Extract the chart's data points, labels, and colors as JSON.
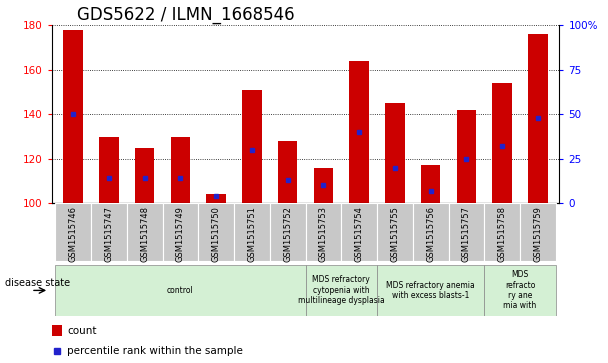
{
  "title": "GDS5622 / ILMN_1668546",
  "samples": [
    "GSM1515746",
    "GSM1515747",
    "GSM1515748",
    "GSM1515749",
    "GSM1515750",
    "GSM1515751",
    "GSM1515752",
    "GSM1515753",
    "GSM1515754",
    "GSM1515755",
    "GSM1515756",
    "GSM1515757",
    "GSM1515758",
    "GSM1515759"
  ],
  "counts": [
    178,
    130,
    125,
    130,
    104,
    151,
    128,
    116,
    164,
    145,
    117,
    142,
    154,
    176
  ],
  "percentile_ranks": [
    50,
    14,
    14,
    14,
    4,
    30,
    13,
    10,
    40,
    20,
    7,
    25,
    32,
    48
  ],
  "ymin": 100,
  "ymax": 180,
  "yticks_left": [
    100,
    120,
    140,
    160,
    180
  ],
  "yticks_right": [
    0,
    25,
    50,
    75,
    100
  ],
  "bar_color": "#cc0000",
  "percentile_color": "#2222cc",
  "plot_bg": "#ffffff",
  "tick_label_bg": "#c8c8c8",
  "disease_groups": [
    {
      "label": "control",
      "start": 0,
      "end": 6,
      "color": "#d4f0d4"
    },
    {
      "label": "MDS refractory\ncytopenia with\nmultilineage dysplasia",
      "start": 7,
      "end": 8,
      "color": "#d4f0d4"
    },
    {
      "label": "MDS refractory anemia\nwith excess blasts-1",
      "start": 9,
      "end": 11,
      "color": "#d4f0d4"
    },
    {
      "label": "MDS\nrefracto\nry ane\nmia with",
      "start": 12,
      "end": 13,
      "color": "#d4f0d4"
    }
  ],
  "disease_state_label": "disease state",
  "legend_count_label": "count",
  "legend_percentile_label": "percentile rank within the sample",
  "title_fontsize": 12,
  "axis_label_fontsize": 8,
  "tick_fontsize": 7.5,
  "bar_width": 0.55
}
